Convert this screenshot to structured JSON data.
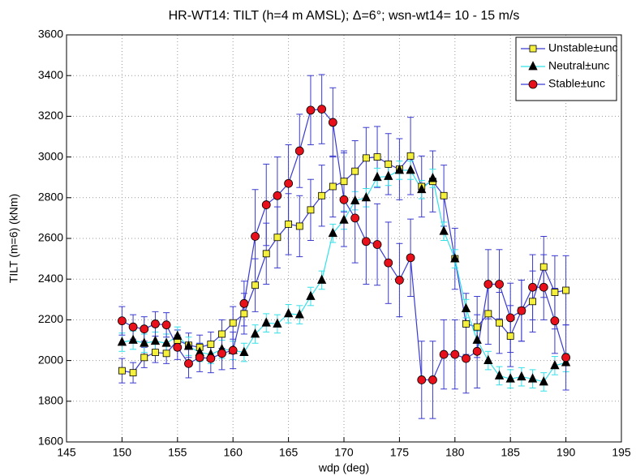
{
  "chart_data": {
    "type": "line",
    "title": "HR-WT14: TILT (h=4 m AMSL); Δ=6°; wsn-wt14= 10 - 15 m/s",
    "x_label": "wdp (deg)",
    "y_label": "TILT (m=6) (kNm)",
    "x": [
      150,
      151,
      152,
      153,
      154,
      155,
      156,
      157,
      158,
      159,
      160,
      161,
      162,
      163,
      164,
      165,
      166,
      167,
      168,
      169,
      170,
      171,
      172,
      173,
      174,
      175,
      176,
      177,
      178,
      179,
      180,
      181,
      182,
      183,
      184,
      185,
      186,
      187,
      188,
      189,
      190
    ],
    "series": [
      {
        "name": "Unstable±unc",
        "color": "#3a3ad0",
        "marker": "square",
        "marker_color": "#f5f03c",
        "error_color": "#3a3ad0",
        "values": [
          1950,
          1940,
          2015,
          2040,
          2035,
          2100,
          2075,
          2065,
          2080,
          2130,
          2185,
          2230,
          2370,
          2525,
          2605,
          2670,
          2660,
          2740,
          2810,
          2855,
          2880,
          2930,
          2995,
          3000,
          2965,
          2940,
          3005,
          2855,
          2880,
          2810,
          2500,
          2180,
          2165,
          2230,
          2185,
          2120,
          2245,
          2290,
          2460,
          2335,
          2345
        ],
        "errors": [
          60,
          50,
          50,
          50,
          50,
          50,
          60,
          60,
          60,
          70,
          80,
          100,
          130,
          150,
          150,
          150,
          150,
          150,
          150,
          150,
          150,
          150,
          150,
          150,
          150,
          150,
          190,
          150,
          150,
          150,
          150,
          150,
          150,
          150,
          150,
          150,
          150,
          150,
          150,
          180,
          170
        ]
      },
      {
        "name": "Neutral±unc",
        "color": "#33e0e8",
        "marker": "triangle",
        "marker_color": "#000000",
        "error_color": "#33e0e8",
        "values": [
          2090,
          2100,
          2085,
          2095,
          2085,
          2120,
          2070,
          2040,
          2030,
          2055,
          2050,
          2040,
          2130,
          2185,
          2180,
          2230,
          2225,
          2315,
          2395,
          2625,
          2690,
          2785,
          2800,
          2900,
          2905,
          2935,
          2935,
          2840,
          2895,
          2635,
          2500,
          2255,
          2100,
          2000,
          1925,
          1910,
          1920,
          1910,
          1895,
          1975,
          1990
        ],
        "errors": [
          45,
          45,
          45,
          45,
          45,
          45,
          45,
          45,
          45,
          45,
          45,
          45,
          45,
          45,
          45,
          45,
          45,
          45,
          45,
          45,
          45,
          45,
          45,
          45,
          45,
          45,
          45,
          45,
          45,
          45,
          45,
          45,
          45,
          45,
          45,
          45,
          45,
          45,
          45,
          45,
          45
        ]
      },
      {
        "name": "Stable±unc",
        "color": "#3a3ad0",
        "marker": "circle",
        "marker_color": "#e8101a",
        "error_color": "#3a3ad0",
        "values": [
          2195,
          2165,
          2155,
          2180,
          2175,
          2065,
          1985,
          2015,
          2010,
          2035,
          2050,
          2280,
          2610,
          2765,
          2810,
          2870,
          3030,
          3230,
          3235,
          3170,
          2790,
          2700,
          2585,
          2570,
          2480,
          2395,
          2505,
          1905,
          1905,
          2030,
          2030,
          2010,
          2045,
          2375,
          2375,
          2210,
          2245,
          2360,
          2360,
          2195,
          2015
        ],
        "errors": [
          70,
          60,
          60,
          60,
          60,
          60,
          70,
          70,
          70,
          80,
          90,
          110,
          230,
          200,
          190,
          190,
          180,
          170,
          170,
          170,
          230,
          220,
          210,
          200,
          200,
          180,
          190,
          190,
          190,
          170,
          170,
          170,
          180,
          170,
          170,
          170,
          150,
          160,
          160,
          160,
          160
        ]
      }
    ],
    "xlim": [
      145,
      195
    ],
    "xticks": [
      145,
      150,
      155,
      160,
      165,
      170,
      175,
      180,
      185,
      190,
      195
    ],
    "ylim": [
      1600,
      3600
    ],
    "yticks": [
      1600,
      1800,
      2000,
      2200,
      2400,
      2600,
      2800,
      3000,
      3200,
      3400,
      3600
    ],
    "grid": true,
    "legend": "top-right"
  }
}
